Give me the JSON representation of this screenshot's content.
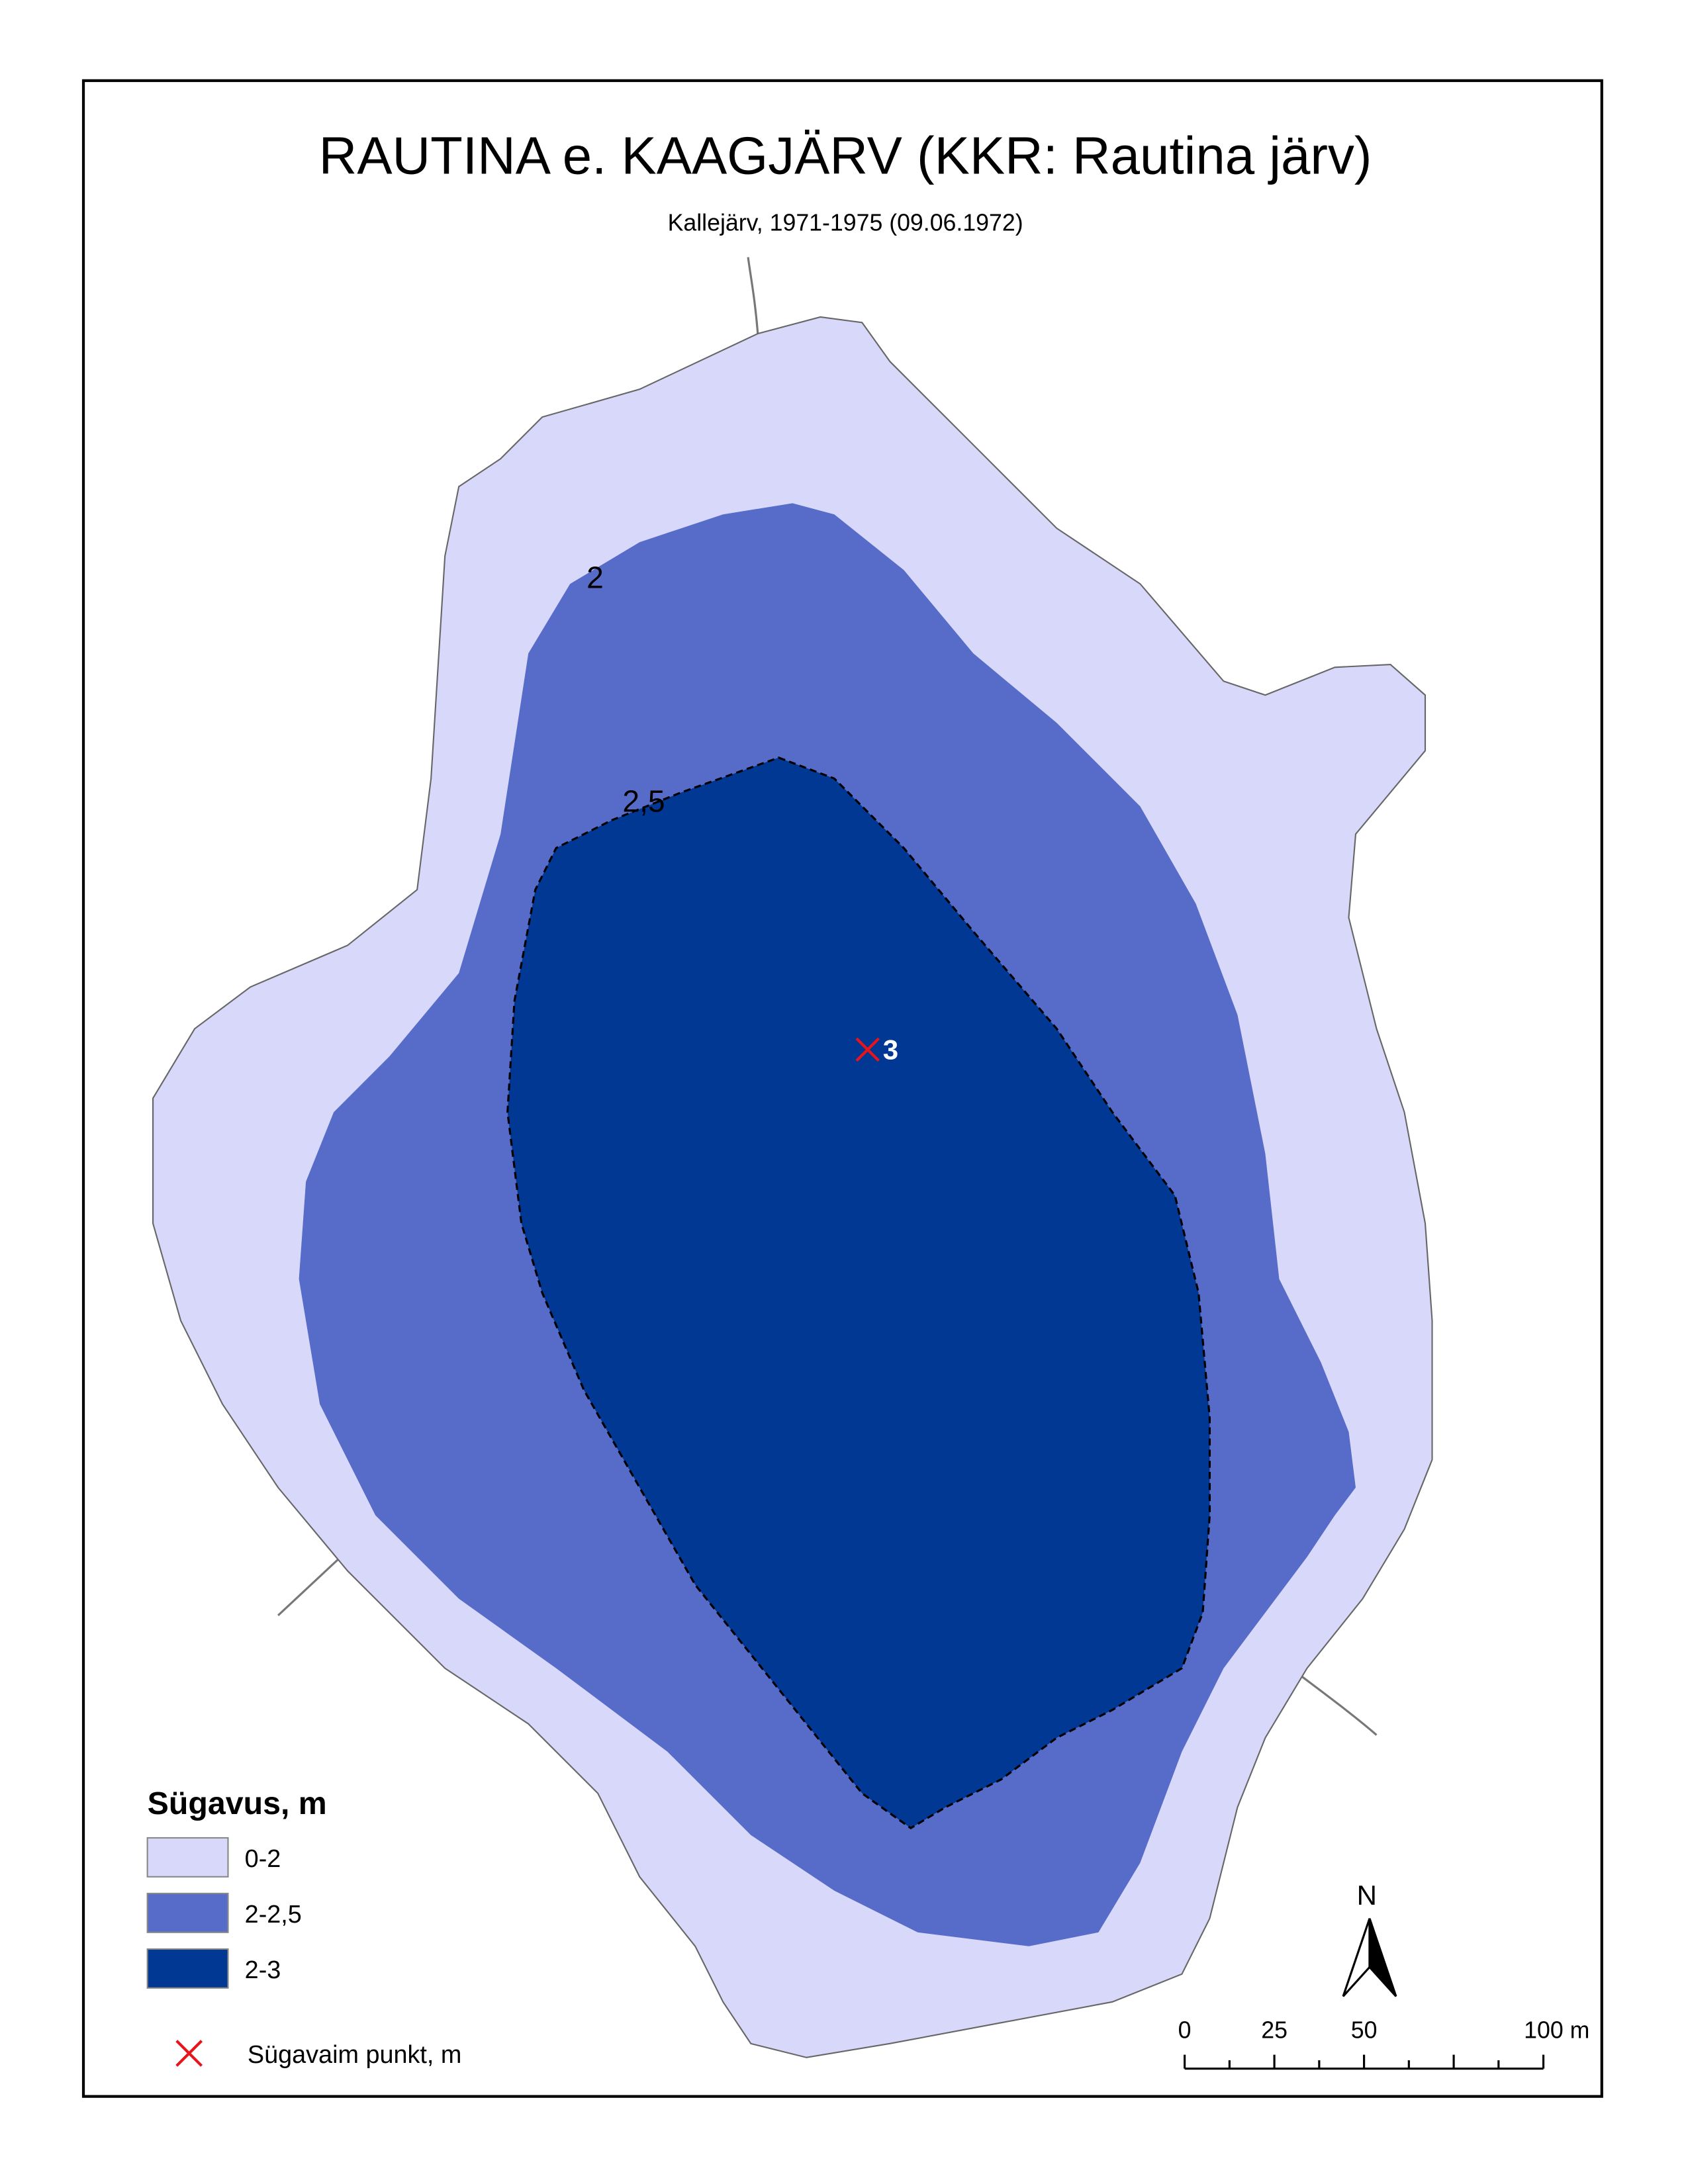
{
  "title": "RAUTINA  e. KAAGJÄRV (KKR: Rautina järv)",
  "subtitle": "Kallejärv, 1971-1975 (09.06.1972)",
  "contour_labels": [
    "2",
    "2,5"
  ],
  "deepest_point": {
    "label": "3",
    "color": "#e8141c"
  },
  "legend": {
    "title": "Sügavus, m",
    "items": [
      {
        "label": "0-2",
        "color": "#d8d8fa"
      },
      {
        "label": "2-2,5",
        "color": "#566cc8"
      },
      {
        "label": "2-3",
        "color": "#003893"
      }
    ],
    "point_label": "Sügavaim punkt, m"
  },
  "scale_bar": {
    "labels": [
      "0",
      "25",
      "50",
      "100 m"
    ]
  },
  "north": "N"
}
